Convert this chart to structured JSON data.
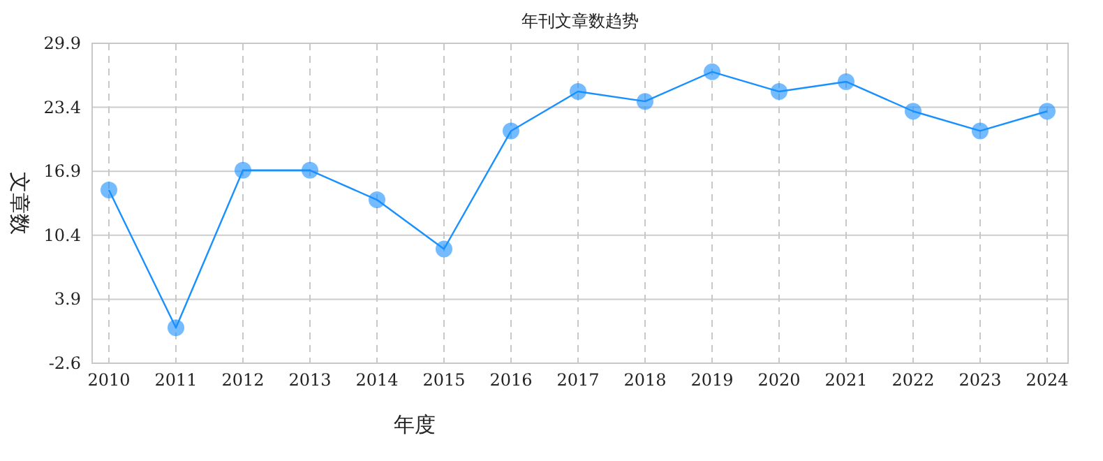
{
  "chart_data": {
    "type": "line",
    "title": "年刊文章数趋势",
    "xlabel": "年度",
    "ylabel": "文章数",
    "categories": [
      "2010",
      "2011",
      "2012",
      "2013",
      "2014",
      "2015",
      "2016",
      "2017",
      "2018",
      "2019",
      "2020",
      "2021",
      "2022",
      "2023",
      "2024"
    ],
    "series": [
      {
        "color": "#1890ff",
        "values": [
          15,
          1,
          17,
          17,
          14,
          9,
          21,
          25,
          24,
          27,
          25,
          26,
          23,
          21,
          23
        ]
      }
    ],
    "ylim": [
      -2.6,
      29.9
    ],
    "yticks": [
      -2.6,
      3.9,
      10.4,
      16.9,
      23.4,
      29.9
    ],
    "grid": true,
    "marker": "circle",
    "line_style": "solid"
  }
}
